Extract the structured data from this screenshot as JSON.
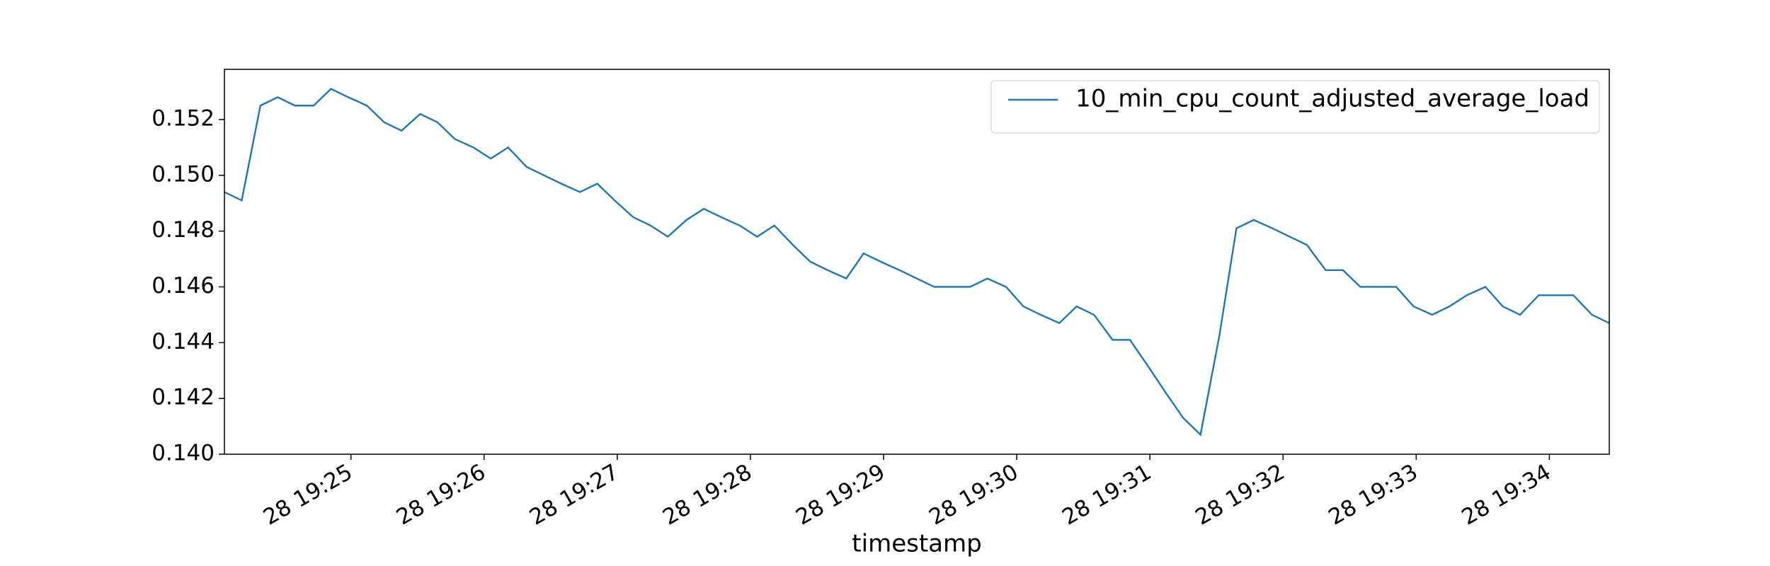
{
  "chart_data": {
    "type": "line",
    "x_label": "timestamp",
    "x": [
      1164.05,
      1164.18,
      1164.32,
      1164.45,
      1164.58,
      1164.72,
      1164.85,
      1164.98,
      1165.12,
      1165.25,
      1165.38,
      1165.52,
      1165.65,
      1165.78,
      1165.92,
      1166.05,
      1166.18,
      1166.32,
      1166.45,
      1166.58,
      1166.72,
      1166.85,
      1166.98,
      1167.12,
      1167.25,
      1167.38,
      1167.52,
      1167.65,
      1167.78,
      1167.92,
      1168.05,
      1168.18,
      1168.32,
      1168.45,
      1168.58,
      1168.72,
      1168.85,
      1168.98,
      1169.12,
      1169.25,
      1169.38,
      1169.52,
      1169.65,
      1169.78,
      1169.92,
      1170.05,
      1170.18,
      1170.32,
      1170.45,
      1170.58,
      1170.72,
      1170.85,
      1170.98,
      1171.12,
      1171.25,
      1171.38,
      1171.52,
      1171.65,
      1171.78,
      1171.92,
      1172.05,
      1172.18,
      1172.32,
      1172.45,
      1172.58,
      1172.72,
      1172.85,
      1172.98,
      1173.12,
      1173.25,
      1173.38,
      1173.52,
      1173.65,
      1173.78,
      1173.92,
      1174.05,
      1174.18,
      1174.32,
      1174.45
    ],
    "series": [
      {
        "name": "10_min_cpu_count_adjusted_average_load",
        "color": "#1f77b4",
        "values": [
          0.1494,
          0.1491,
          0.1525,
          0.1528,
          0.1525,
          0.1525,
          0.1531,
          0.1528,
          0.1525,
          0.1519,
          0.1516,
          0.1522,
          0.1519,
          0.1513,
          0.151,
          0.1506,
          0.151,
          0.1503,
          0.15,
          0.1497,
          0.1494,
          0.1497,
          0.1491,
          0.1485,
          0.1482,
          0.1478,
          0.1484,
          0.1488,
          0.1485,
          0.1482,
          0.1478,
          0.1482,
          0.1475,
          0.1469,
          0.1466,
          0.1463,
          0.1472,
          0.1469,
          0.1466,
          0.1463,
          0.146,
          0.146,
          0.146,
          0.1463,
          0.146,
          0.1453,
          0.145,
          0.1447,
          0.1453,
          0.145,
          0.1441,
          0.1441,
          0.1432,
          0.1422,
          0.1413,
          0.1407,
          0.1442,
          0.1481,
          0.1484,
          0.1481,
          0.1478,
          0.1475,
          0.1466,
          0.1466,
          0.146,
          0.146,
          0.146,
          0.1453,
          0.145,
          0.1453,
          0.1457,
          0.146,
          0.1453,
          0.145,
          0.1457,
          0.1457,
          0.1457,
          0.145,
          0.1447
        ]
      }
    ],
    "xlim": [
      1164.05,
      1174.45
    ],
    "xticks": [
      {
        "value": 1165,
        "label": "28 19:25"
      },
      {
        "value": 1166,
        "label": "28 19:26"
      },
      {
        "value": 1167,
        "label": "28 19:27"
      },
      {
        "value": 1168,
        "label": "28 19:28"
      },
      {
        "value": 1169,
        "label": "28 19:29"
      },
      {
        "value": 1170,
        "label": "28 19:30"
      },
      {
        "value": 1171,
        "label": "28 19:31"
      },
      {
        "value": 1172,
        "label": "28 19:32"
      },
      {
        "value": 1173,
        "label": "28 19:33"
      },
      {
        "value": 1174,
        "label": "28 19:34"
      }
    ],
    "ylim": [
      0.14,
      0.1538
    ],
    "yticks": [
      {
        "value": 0.14,
        "label": "0.140"
      },
      {
        "value": 0.142,
        "label": "0.142"
      },
      {
        "value": 0.144,
        "label": "0.144"
      },
      {
        "value": 0.146,
        "label": "0.146"
      },
      {
        "value": 0.148,
        "label": "0.148"
      },
      {
        "value": 0.15,
        "label": "0.150"
      },
      {
        "value": 0.152,
        "label": "0.152"
      }
    ],
    "grid": false,
    "legend": "upper right"
  }
}
